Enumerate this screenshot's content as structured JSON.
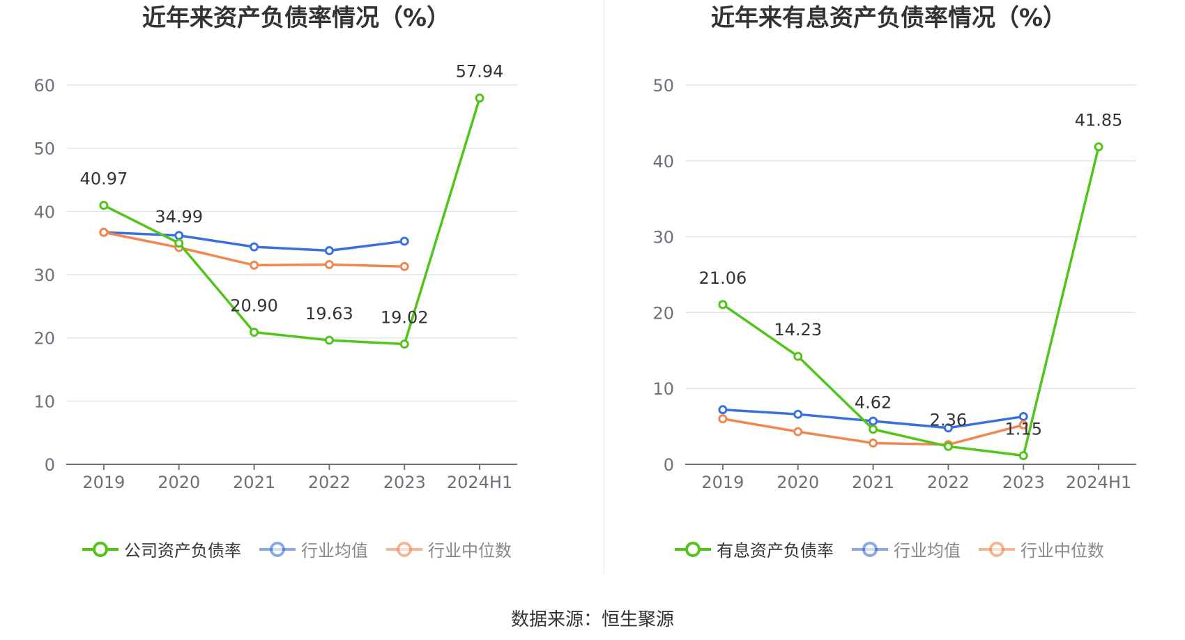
{
  "source_label": "数据来源：恒生聚源",
  "chart_data": [
    {
      "type": "line",
      "title": "近年来资产负债率情况（%）",
      "categories": [
        "2019",
        "2020",
        "2021",
        "2022",
        "2023",
        "2024H1"
      ],
      "ylim": [
        0,
        60
      ],
      "yticks": [
        0,
        10,
        20,
        30,
        40,
        50,
        60
      ],
      "grid": true,
      "legend_position": "bottom",
      "series": [
        {
          "name": "公司资产负债率",
          "color": "#52c41a",
          "values": [
            40.97,
            34.99,
            20.9,
            19.63,
            19.02,
            57.94
          ],
          "labels": [
            "40.97",
            "34.99",
            "20.90",
            "19.63",
            "19.02",
            "57.94"
          ]
        },
        {
          "name": "行业均值",
          "color": "#3a70dd",
          "values": [
            36.7,
            36.2,
            34.4,
            33.8,
            35.3,
            null
          ]
        },
        {
          "name": "行业中位数",
          "color": "#f08650",
          "values": [
            36.7,
            34.3,
            31.5,
            31.6,
            31.3,
            null
          ]
        }
      ]
    },
    {
      "type": "line",
      "title": "近年来有息资产负债率情况（%）",
      "categories": [
        "2019",
        "2020",
        "2021",
        "2022",
        "2023",
        "2024H1"
      ],
      "ylim": [
        0,
        50
      ],
      "yticks": [
        0,
        10,
        20,
        30,
        40,
        50
      ],
      "grid": true,
      "legend_position": "bottom",
      "series": [
        {
          "name": "有息资产负债率",
          "color": "#52c41a",
          "values": [
            21.06,
            14.23,
            4.62,
            2.36,
            1.15,
            41.85
          ],
          "labels": [
            "21.06",
            "14.23",
            "4.62",
            "2.36",
            "1.15",
            "41.85"
          ]
        },
        {
          "name": "行业均值",
          "color": "#3a70dd",
          "values": [
            7.2,
            6.6,
            5.7,
            4.8,
            6.3,
            null
          ]
        },
        {
          "name": "行业中位数",
          "color": "#f08650",
          "values": [
            6.0,
            4.3,
            2.8,
            2.6,
            5.2,
            null
          ]
        }
      ]
    }
  ]
}
